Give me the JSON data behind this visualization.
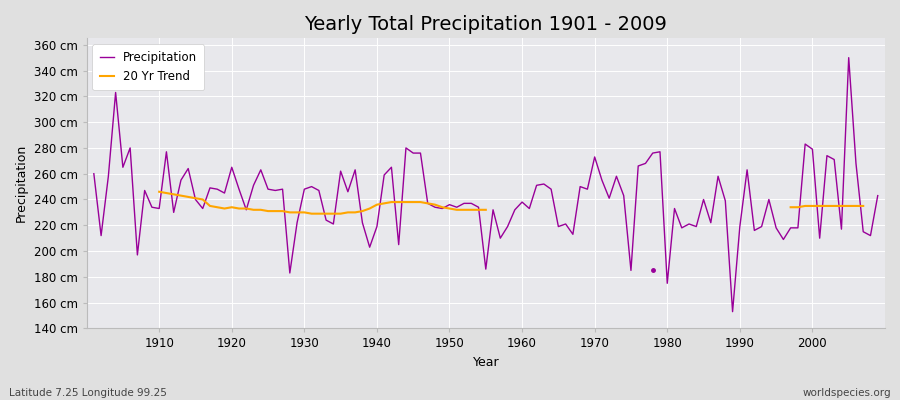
{
  "title": "Yearly Total Precipitation 1901 - 2009",
  "xlabel": "Year",
  "ylabel": "Precipitation",
  "subtitle": "Latitude 7.25 Longitude 99.25",
  "watermark": "worldspecies.org",
  "years": [
    1901,
    1902,
    1903,
    1904,
    1905,
    1906,
    1907,
    1908,
    1909,
    1910,
    1911,
    1912,
    1913,
    1914,
    1915,
    1916,
    1917,
    1918,
    1919,
    1920,
    1921,
    1922,
    1923,
    1924,
    1925,
    1926,
    1927,
    1928,
    1929,
    1930,
    1931,
    1932,
    1933,
    1934,
    1935,
    1936,
    1937,
    1938,
    1939,
    1940,
    1941,
    1942,
    1943,
    1944,
    1945,
    1946,
    1947,
    1948,
    1949,
    1950,
    1951,
    1952,
    1953,
    1954,
    1955,
    1956,
    1957,
    1958,
    1959,
    1960,
    1961,
    1962,
    1963,
    1964,
    1965,
    1966,
    1967,
    1968,
    1969,
    1970,
    1971,
    1972,
    1973,
    1974,
    1975,
    1976,
    1977,
    1978,
    1979,
    1980,
    1981,
    1982,
    1983,
    1984,
    1985,
    1986,
    1987,
    1988,
    1989,
    1990,
    1991,
    1992,
    1993,
    1994,
    1995,
    1996,
    1997,
    1998,
    1999,
    2000,
    2001,
    2002,
    2003,
    2004,
    2005,
    2006,
    2007,
    2008,
    2009
  ],
  "precipitation": [
    260,
    212,
    258,
    323,
    265,
    280,
    197,
    247,
    234,
    233,
    277,
    230,
    255,
    264,
    240,
    233,
    249,
    248,
    245,
    265,
    248,
    232,
    251,
    263,
    248,
    247,
    248,
    183,
    222,
    248,
    250,
    247,
    224,
    221,
    262,
    246,
    263,
    222,
    203,
    219,
    259,
    265,
    205,
    280,
    276,
    276,
    237,
    234,
    233,
    236,
    234,
    237,
    237,
    234,
    186,
    232,
    210,
    219,
    232,
    238,
    233,
    251,
    252,
    248,
    219,
    221,
    213,
    250,
    248,
    273,
    255,
    241,
    258,
    243,
    185,
    266,
    268,
    276,
    277,
    175,
    233,
    218,
    221,
    219,
    240,
    222,
    258,
    239,
    153,
    219,
    263,
    216,
    219,
    240,
    218,
    209,
    218,
    218,
    283,
    279,
    210,
    274,
    271,
    217,
    350,
    268,
    215,
    212,
    243
  ],
  "precip_color": "#990099",
  "trend_color": "#FFA500",
  "bg_color": "#e0e0e0",
  "plot_bg_color": "#e8e8ec",
  "ylim": [
    140,
    365
  ],
  "yticks": [
    140,
    160,
    180,
    200,
    220,
    240,
    260,
    280,
    300,
    320,
    340,
    360
  ],
  "xlim": [
    1900,
    2010
  ],
  "xticks": [
    1910,
    1920,
    1930,
    1940,
    1950,
    1960,
    1970,
    1980,
    1990,
    2000
  ],
  "trend_segment1_years": [
    1910,
    1911,
    1912,
    1913,
    1914,
    1915,
    1916,
    1917,
    1918,
    1919,
    1920,
    1921,
    1922,
    1923,
    1924,
    1925,
    1926,
    1927,
    1928,
    1929,
    1930,
    1931,
    1932,
    1933,
    1934,
    1935,
    1936,
    1937,
    1938,
    1939,
    1940,
    1941,
    1942,
    1943,
    1944,
    1945,
    1946,
    1947,
    1948,
    1949,
    1950,
    1951,
    1952,
    1953,
    1954,
    1955
  ],
  "trend_segment1_values": [
    246,
    245,
    244,
    243,
    242,
    241,
    240,
    235,
    234,
    233,
    234,
    233,
    233,
    232,
    232,
    231,
    231,
    231,
    230,
    230,
    230,
    229,
    229,
    229,
    229,
    229,
    230,
    230,
    231,
    233,
    236,
    237,
    238,
    238,
    238,
    238,
    238,
    237,
    236,
    234,
    233,
    232,
    232,
    232,
    232,
    232
  ],
  "trend_segment2_years": [
    1997,
    1998,
    1999,
    2000,
    2001,
    2002,
    2003,
    2004,
    2005,
    2006,
    2007
  ],
  "trend_segment2_values": [
    234,
    234,
    235,
    235,
    235,
    235,
    235,
    235,
    235,
    235,
    235
  ],
  "isolated_dot_year": 1978,
  "isolated_dot_value": 185
}
